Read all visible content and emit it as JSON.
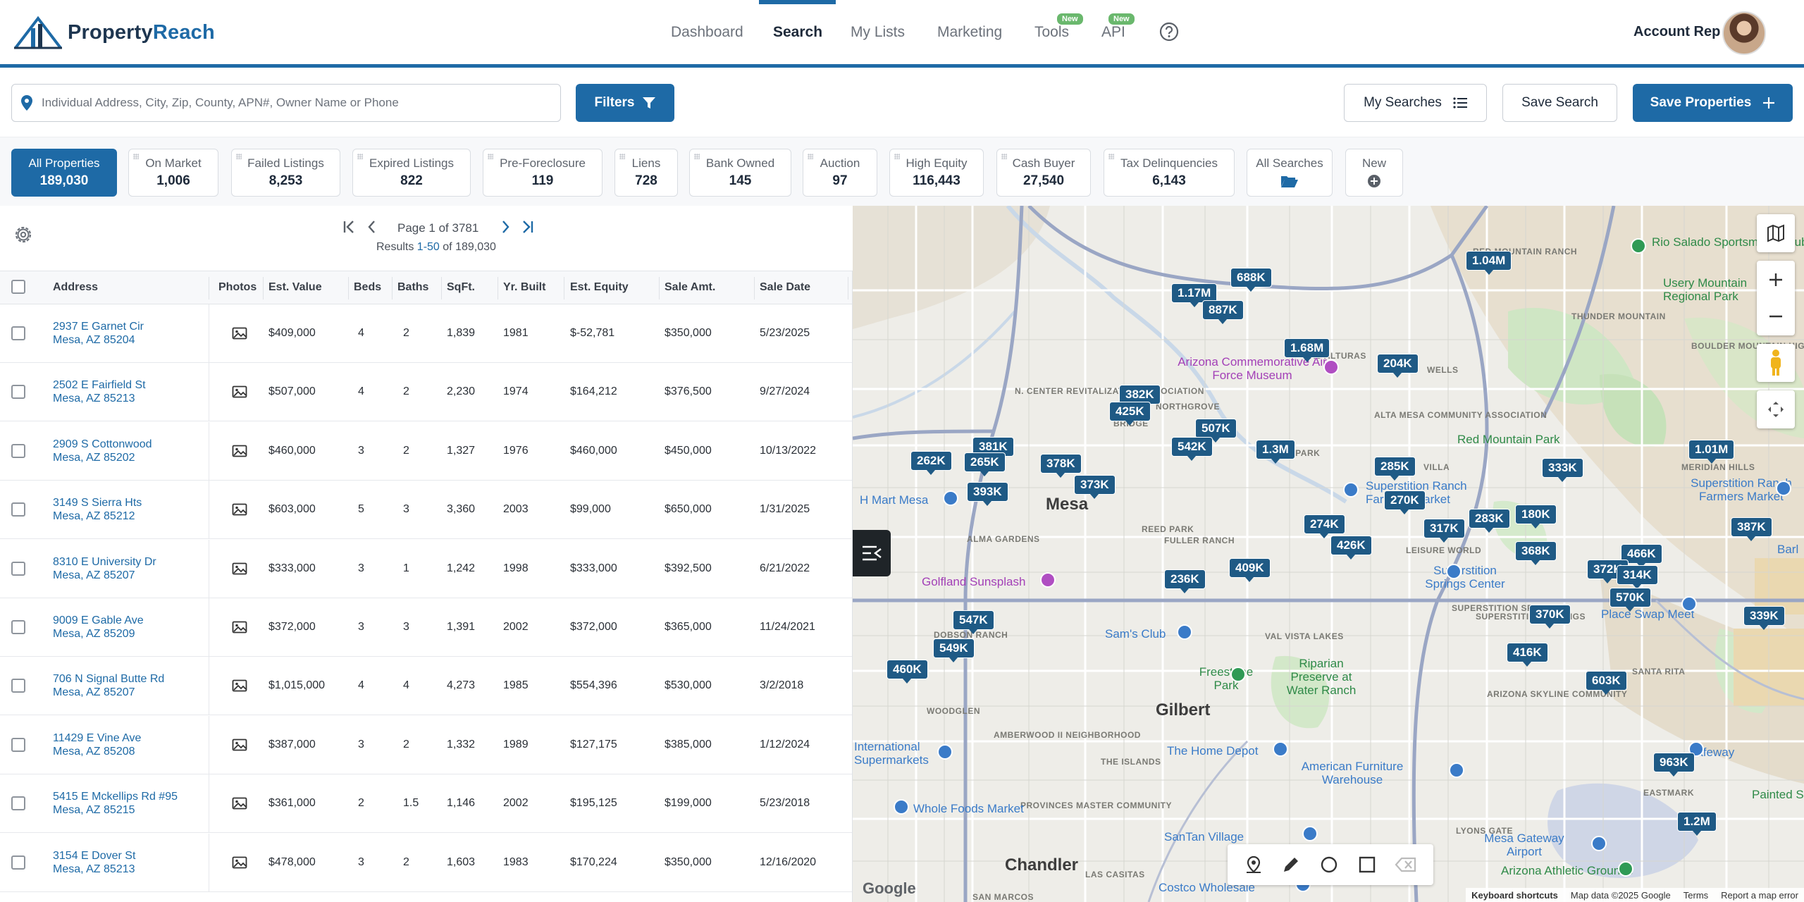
{
  "header": {
    "brand_prefix": "Property",
    "brand_suffix": "Reach",
    "nav": [
      {
        "label": "Dashboard"
      },
      {
        "label": "Search"
      },
      {
        "label": "My Lists"
      },
      {
        "label": "Marketing"
      },
      {
        "label": "Tools",
        "badge": "New"
      },
      {
        "label": "API",
        "badge": "New"
      }
    ],
    "account_label": "Account Rep",
    "accent": "#1e6aa6"
  },
  "search": {
    "placeholder": "Individual Address, City, Zip, County, APN#, Owner Name or Phone",
    "filters_label": "Filters",
    "my_searches_label": "My Searches",
    "save_search_label": "Save Search",
    "save_properties_label": "Save Properties"
  },
  "categories": [
    {
      "label": "All Properties",
      "count": "189,030"
    },
    {
      "label": "On Market",
      "count": "1,006"
    },
    {
      "label": "Failed Listings",
      "count": "8,253"
    },
    {
      "label": "Expired Listings",
      "count": "822"
    },
    {
      "label": "Pre-Foreclosure",
      "count": "119"
    },
    {
      "label": "Liens",
      "count": "728"
    },
    {
      "label": "Bank Owned",
      "count": "145"
    },
    {
      "label": "Auction",
      "count": "97"
    },
    {
      "label": "High Equity",
      "count": "116,443"
    },
    {
      "label": "Cash Buyer",
      "count": "27,540"
    },
    {
      "label": "Tax Delinquencies",
      "count": "6,143"
    },
    {
      "label": "All Searches",
      "icon": "folder-open-icon"
    },
    {
      "label": "New",
      "icon": "plus-circle-icon"
    }
  ],
  "pager": {
    "page_text": "Page 1 of 3781",
    "results_prefix": "Results ",
    "results_range": "1-50",
    "results_suffix": " of 189,030"
  },
  "table": {
    "headers": [
      "Address",
      "Photos",
      "Est. Value",
      "Beds",
      "Baths",
      "SqFt.",
      "Yr. Built",
      "Est. Equity",
      "Sale Amt.",
      "Sale Date"
    ],
    "rows": [
      {
        "street": "2937 E Garnet Cir",
        "city": "Mesa,  AZ 85204",
        "value": "$409,000",
        "beds": "4",
        "baths": "2",
        "sqft": "1,839",
        "year": "1981",
        "equity": "$-52,781",
        "sale": "$350,000",
        "date": "5/23/2025"
      },
      {
        "street": "2502 E Fairfield St",
        "city": "Mesa,  AZ 85213",
        "value": "$507,000",
        "beds": "4",
        "baths": "2",
        "sqft": "2,230",
        "year": "1974",
        "equity": "$164,212",
        "sale": "$376,500",
        "date": "9/27/2024"
      },
      {
        "street": "2909 S Cottonwood",
        "city": "Mesa,  AZ 85202",
        "value": "$460,000",
        "beds": "3",
        "baths": "2",
        "sqft": "1,327",
        "year": "1976",
        "equity": "$460,000",
        "sale": "$450,000",
        "date": "10/13/2022"
      },
      {
        "street": "3149 S Sierra Hts",
        "city": "Mesa,  AZ 85212",
        "value": "$603,000",
        "beds": "5",
        "baths": "3",
        "sqft": "3,360",
        "year": "2003",
        "equity": "$99,000",
        "sale": "$650,000",
        "date": "1/31/2025"
      },
      {
        "street": "8310 E University Dr",
        "city": "Mesa,  AZ 85207",
        "value": "$333,000",
        "beds": "3",
        "baths": "1",
        "sqft": "1,242",
        "year": "1998",
        "equity": "$333,000",
        "sale": "$392,500",
        "date": "6/21/2022"
      },
      {
        "street": "9009 E Gable Ave",
        "city": "Mesa,  AZ 85209",
        "value": "$372,000",
        "beds": "3",
        "baths": "3",
        "sqft": "1,391",
        "year": "2002",
        "equity": "$372,000",
        "sale": "$365,000",
        "date": "11/24/2021"
      },
      {
        "street": "706 N Signal Butte Rd",
        "city": "Mesa,  AZ 85207",
        "value": "$1,015,000",
        "beds": "4",
        "baths": "4",
        "sqft": "4,273",
        "year": "1985",
        "equity": "$554,396",
        "sale": "$530,000",
        "date": "3/2/2018"
      },
      {
        "street": "11429 E Vine Ave",
        "city": "Mesa,  AZ 85208",
        "value": "$387,000",
        "beds": "3",
        "baths": "2",
        "sqft": "1,332",
        "year": "1989",
        "equity": "$127,175",
        "sale": "$385,000",
        "date": "1/12/2024"
      },
      {
        "street": "5415 E Mckellips Rd #95",
        "city": "Mesa,  AZ 85215",
        "value": "$361,000",
        "beds": "2",
        "baths": "1.5",
        "sqft": "1,146",
        "year": "2002",
        "equity": "$195,125",
        "sale": "$199,000",
        "date": "5/23/2018"
      },
      {
        "street": "3154 E Dover St",
        "city": "Mesa,  AZ 85213",
        "value": "$478,000",
        "beds": "3",
        "baths": "2",
        "sqft": "1,603",
        "year": "1983",
        "equity": "$170,224",
        "sale": "$350,000",
        "date": "12/16/2020"
      }
    ]
  },
  "map": {
    "cities": [
      "Mesa",
      "Gilbert",
      "Chandler"
    ],
    "areas": [
      "RED MOUNTAIN RANCH",
      "THUNDER MOUNTAIN",
      "BOULDER MOUNTAIN HIGHLANDS",
      "LAS ALTURAS",
      "WELLS",
      "N. CENTER REVITALIZATION ASSOCIATION",
      "BRIDGE",
      "NORTHGROVE",
      "ALTA MESA COMMUNITY ASSOCIATION",
      "FIESTA PARK",
      "VILLA",
      "MERIDIAN HILLS",
      "ALMA GARDENS",
      "REED PARK",
      "FULLER RANCH",
      "LEISURE WORLD",
      "SUPERSTITION SPRINGS",
      "DOBSON RANCH",
      "VAL VISTA LAKES",
      "ARIZONA SKYLINE COMMUNITY",
      "SANTA RITA",
      "SUPERSTITION SPRINGS",
      "WOODGLEN",
      "AMBERWOOD II NEIGHBORHOOD",
      "THE ISLANDS",
      "PROVINCES MASTER COMMUNITY",
      "EASTMARK",
      "LYONS GATE",
      "SAN MARCOS",
      "LAS CASITAS"
    ],
    "pois": [
      "Rio Salado Sportsman's Club",
      "Usery Mountain Regional Park",
      "Arizona Commemorative Air Force Museum",
      "Red Mountain Park",
      "Superstition Ranch Farmers Market",
      "H Mart Mesa",
      "Superstition Ranch Farmers Market",
      "Superstition Springs Center",
      "Golfland Sunsplash",
      "Sam's Club",
      "Freestone Park",
      "Riparian Preserve at Water Ranch",
      "Place Swap Meet",
      "Superstition Ranch",
      "Barl",
      "International Supermarkets",
      "The Home Depot",
      "American Furniture Warehouse",
      "Safeway",
      "Painted Sky Par",
      "Whole Foods Market",
      "SanTan Village",
      "Mesa Gateway Airport",
      "Arizona Athletic Grounds",
      "Costco Wholesale"
    ],
    "markers": [
      "1.04M",
      "688K",
      "1.17M",
      "887K",
      "1.68M",
      "204K",
      "382K",
      "425K",
      "507K",
      "542K",
      "1.3M",
      "381K",
      "262K",
      "265K",
      "378K",
      "373K",
      "393K",
      "285K",
      "270K",
      "333K",
      "1.01M",
      "274K",
      "426K",
      "317K",
      "283K",
      "180K",
      "368K",
      "387K",
      "466K",
      "236K",
      "409K",
      "372K",
      "314K",
      "570K",
      "370K",
      "339K",
      "547K",
      "549K",
      "460K",
      "416K",
      "603K",
      "963K",
      "1.2M"
    ],
    "attribution": [
      "Keyboard shortcuts",
      "Map data ©2025 Google",
      "Terms",
      "Report a map error"
    ],
    "google": "Google"
  }
}
